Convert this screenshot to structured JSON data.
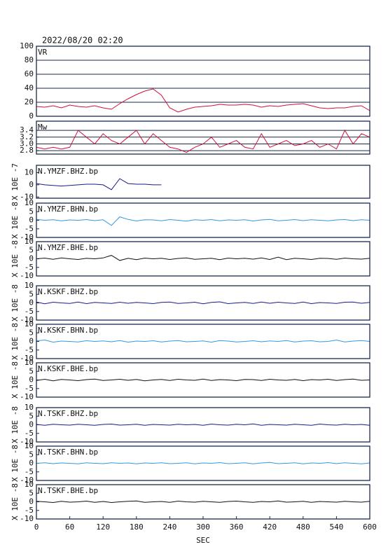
{
  "chart_data": [
    {
      "type": "line",
      "title": "2022/08/20 02:20",
      "xlim": [
        0,
        600
      ],
      "ylim": [
        0,
        100
      ],
      "yticks": [
        0,
        20,
        40,
        60,
        80,
        100
      ],
      "grid": true,
      "x": [
        0,
        15,
        30,
        45,
        60,
        75,
        90,
        105,
        120,
        135,
        150,
        165,
        180,
        195,
        210,
        225,
        240,
        255,
        270,
        285,
        300,
        315,
        330,
        345,
        360,
        375,
        390,
        405,
        420,
        435,
        450,
        465,
        480,
        495,
        510,
        525,
        540,
        555,
        570,
        585,
        600
      ],
      "series": [
        {
          "name": "VR",
          "color": "#d0103a",
          "values": [
            14,
            13,
            15,
            12,
            16,
            14,
            13,
            15,
            12,
            10,
            18,
            25,
            31,
            36,
            39,
            30,
            12,
            6,
            10,
            13,
            14,
            15,
            17,
            16,
            16,
            17,
            16,
            13,
            15,
            14,
            16,
            17,
            18,
            15,
            12,
            11,
            12,
            12,
            14,
            15,
            8
          ]
        }
      ]
    },
    {
      "type": "line",
      "xlim": [
        0,
        600
      ],
      "ylim": [
        2.7,
        3.67
      ],
      "yticks": [
        2.8,
        {
          "value": 3,
          "label": "3.0"
        },
        3.2,
        3.4
      ],
      "grid": true,
      "x": [
        0,
        15,
        30,
        45,
        60,
        75,
        90,
        105,
        120,
        135,
        150,
        165,
        180,
        195,
        210,
        225,
        240,
        255,
        270,
        285,
        300,
        315,
        330,
        345,
        360,
        375,
        390,
        405,
        420,
        435,
        450,
        465,
        480,
        495,
        510,
        525,
        540,
        555,
        570,
        585,
        600
      ],
      "series": [
        {
          "name": "Mw",
          "color": "#d0103a",
          "values": [
            2.9,
            2.85,
            2.9,
            2.85,
            2.9,
            3.4,
            3.2,
            3.0,
            3.3,
            3.1,
            3.0,
            3.2,
            3.4,
            3.0,
            3.3,
            3.1,
            2.9,
            2.85,
            2.75,
            2.9,
            3.0,
            3.2,
            2.9,
            3.0,
            3.1,
            2.9,
            2.85,
            3.3,
            2.9,
            3.0,
            3.1,
            2.95,
            3.0,
            3.1,
            2.9,
            3.0,
            2.85,
            3.4,
            3.0,
            3.3,
            3.2
          ]
        }
      ]
    },
    {
      "type": "line",
      "unit": "X 10E -7",
      "xlim": [
        0,
        600
      ],
      "ylim": [
        -11,
        16
      ],
      "yticks": [
        -10,
        0,
        10
      ],
      "grid": false,
      "x": [
        0,
        15,
        30,
        45,
        60,
        75,
        90,
        105,
        120,
        135,
        150,
        165,
        180,
        195,
        210,
        225,
        240,
        255,
        270,
        285,
        300,
        315,
        330,
        345,
        360,
        375,
        390,
        405,
        420,
        435,
        450,
        465,
        480,
        495,
        510,
        525,
        540,
        555,
        570,
        585,
        600
      ],
      "series": [
        {
          "name": "N.YMZF.BHZ.bp",
          "color": "#1a1a8a",
          "values": [
            1,
            0,
            -0.5,
            -1,
            -0.5,
            0,
            0.5,
            0.5,
            0,
            -4,
            5,
            1,
            0.5,
            0.5,
            0,
            0,
            null,
            null,
            null,
            null,
            null,
            null,
            null,
            null,
            null,
            null,
            null,
            null,
            null,
            null,
            null,
            null,
            null,
            null,
            null,
            null,
            null,
            null,
            null,
            null,
            null
          ]
        }
      ]
    },
    {
      "type": "line",
      "unit": "X 10E -8",
      "xlim": [
        0,
        600
      ],
      "ylim": [
        -10,
        10
      ],
      "yticks": [
        -10,
        -5,
        0,
        5,
        10
      ],
      "grid": false,
      "x": [
        0,
        15,
        30,
        45,
        60,
        75,
        90,
        105,
        120,
        135,
        150,
        165,
        180,
        195,
        210,
        225,
        240,
        255,
        270,
        285,
        300,
        315,
        330,
        345,
        360,
        375,
        390,
        405,
        420,
        435,
        450,
        465,
        480,
        495,
        510,
        525,
        540,
        555,
        570,
        585,
        600
      ],
      "series": [
        {
          "name": "N.YMZF.BHN.bp",
          "color": "#3399dd",
          "values": [
            0.5,
            0,
            0.3,
            -0.3,
            0.2,
            0,
            0.4,
            -0.2,
            0.3,
            -3,
            2,
            0.5,
            -0.4,
            0.3,
            0.2,
            -0.3,
            0.4,
            0,
            -0.5,
            0.3,
            0,
            0.4,
            -0.3,
            0.2,
            0,
            0.3,
            -0.4,
            0.2,
            0.5,
            -0.3,
            0,
            0.4,
            -0.2,
            0.3,
            0,
            -0.3,
            0.2,
            0.4,
            -0.2,
            0.3,
            0
          ]
        }
      ]
    },
    {
      "type": "line",
      "unit": "X 10E -8",
      "xlim": [
        0,
        600
      ],
      "ylim": [
        -10,
        10
      ],
      "yticks": [
        -10,
        -5,
        0,
        5,
        10
      ],
      "grid": false,
      "x": [
        0,
        15,
        30,
        45,
        60,
        75,
        90,
        105,
        120,
        135,
        150,
        165,
        180,
        195,
        210,
        225,
        240,
        255,
        270,
        285,
        300,
        315,
        330,
        345,
        360,
        375,
        390,
        405,
        420,
        435,
        450,
        465,
        480,
        495,
        510,
        525,
        540,
        555,
        570,
        585,
        600
      ],
      "series": [
        {
          "name": "N.YMZF.BHE.bp",
          "color": "#111111",
          "values": [
            0,
            0.4,
            -0.3,
            0.5,
            0,
            -0.4,
            0.3,
            0,
            0.5,
            2,
            -1,
            0.3,
            -0.5,
            0.4,
            0,
            0.3,
            -0.4,
            0.2,
            0.5,
            -0.3,
            0,
            0.3,
            -0.5,
            0.4,
            0,
            0.3,
            -0.2,
            0.5,
            -0.4,
            1,
            -0.5,
            0.3,
            0,
            -0.4,
            0.3,
            0.2,
            -0.3,
            0.4,
            0,
            -0.2,
            0.3
          ]
        }
      ]
    },
    {
      "type": "line",
      "unit": "X 10E -8",
      "xlim": [
        0,
        600
      ],
      "ylim": [
        -10,
        10
      ],
      "yticks": [
        -10,
        -5,
        0,
        5,
        10
      ],
      "grid": false,
      "x": [
        0,
        15,
        30,
        45,
        60,
        75,
        90,
        105,
        120,
        135,
        150,
        165,
        180,
        195,
        210,
        225,
        240,
        255,
        270,
        285,
        300,
        315,
        330,
        345,
        360,
        375,
        390,
        405,
        420,
        435,
        450,
        465,
        480,
        495,
        510,
        525,
        540,
        555,
        570,
        585,
        600
      ],
      "series": [
        {
          "name": "N.KSKF.BHZ.bp",
          "color": "#1a1a8a",
          "values": [
            0.5,
            -0.5,
            0.4,
            0,
            -0.3,
            0.5,
            -0.4,
            0.3,
            0,
            -0.3,
            0.4,
            -0.2,
            0.3,
            0,
            -0.4,
            0.3,
            0.5,
            -0.3,
            0,
            0.4,
            -0.5,
            0.3,
            0.6,
            -0.4,
            0,
            0.3,
            -0.3,
            0.5,
            -0.2,
            0.4,
            0,
            -0.3,
            0.5,
            -0.4,
            0.2,
            0,
            -0.3,
            0.4,
            0.5,
            -0.2,
            0.3
          ]
        }
      ]
    },
    {
      "type": "line",
      "unit": "X 10E -8",
      "xlim": [
        0,
        600
      ],
      "ylim": [
        -10,
        10
      ],
      "yticks": [
        -10,
        -5,
        0,
        5,
        10
      ],
      "grid": false,
      "x": [
        0,
        15,
        30,
        45,
        60,
        75,
        90,
        105,
        120,
        135,
        150,
        165,
        180,
        195,
        210,
        225,
        240,
        255,
        270,
        285,
        300,
        315,
        330,
        345,
        360,
        375,
        390,
        405,
        420,
        435,
        450,
        465,
        480,
        495,
        510,
        525,
        540,
        555,
        570,
        585,
        600
      ],
      "series": [
        {
          "name": "N.KSKF.BHN.bp",
          "color": "#3399dd",
          "values": [
            0.3,
            0.8,
            -0.4,
            0.2,
            0,
            -0.3,
            0.4,
            0,
            0.3,
            -0.2,
            0.5,
            -0.4,
            0.2,
            0,
            0.4,
            -0.3,
            0.2,
            0.5,
            -0.2,
            0,
            0.3,
            -0.4,
            0.5,
            0.2,
            -0.3,
            0,
            0.4,
            -0.2,
            0.3,
            0,
            0.5,
            -0.3,
            0.2,
            0.4,
            -0.2,
            0,
            0.8,
            -0.3,
            0.2,
            0.5,
            0
          ]
        }
      ]
    },
    {
      "type": "line",
      "unit": "X 10E -8",
      "xlim": [
        0,
        600
      ],
      "ylim": [
        -10,
        10
      ],
      "yticks": [
        -10,
        -5,
        0,
        5,
        10
      ],
      "grid": false,
      "x": [
        0,
        15,
        30,
        45,
        60,
        75,
        90,
        105,
        120,
        135,
        150,
        165,
        180,
        195,
        210,
        225,
        240,
        255,
        270,
        285,
        300,
        315,
        330,
        345,
        360,
        375,
        390,
        405,
        420,
        435,
        450,
        465,
        480,
        495,
        510,
        525,
        540,
        555,
        570,
        585,
        600
      ],
      "series": [
        {
          "name": "N.KSKF.BHE.bp",
          "color": "#111111",
          "values": [
            -0.3,
            0.4,
            -0.5,
            0.3,
            0,
            -0.4,
            0.2,
            0.5,
            -0.3,
            0,
            0.4,
            -0.2,
            0.3,
            -0.5,
            0,
            0.3,
            -0.3,
            0.4,
            0,
            -0.2,
            0.5,
            -0.3,
            0.2,
            0,
            -0.4,
            0.3,
            0.2,
            -0.3,
            0.4,
            0,
            -0.2,
            0.3,
            -0.4,
            0.2,
            0,
            0.4,
            -0.3,
            0.2,
            0.5,
            -0.2,
            0
          ]
        }
      ]
    },
    {
      "type": "line",
      "unit": "X 10E -8",
      "xlim": [
        0,
        600
      ],
      "ylim": [
        -10,
        10
      ],
      "yticks": [
        -10,
        -5,
        0,
        5,
        10
      ],
      "grid": false,
      "x": [
        0,
        15,
        30,
        45,
        60,
        75,
        90,
        105,
        120,
        135,
        150,
        165,
        180,
        195,
        210,
        225,
        240,
        255,
        270,
        285,
        300,
        315,
        330,
        345,
        360,
        375,
        390,
        405,
        420,
        435,
        450,
        465,
        480,
        495,
        510,
        525,
        540,
        555,
        570,
        585,
        600
      ],
      "series": [
        {
          "name": "N.TSKF.BHZ.bp",
          "color": "#1a1a8a",
          "values": [
            0.2,
            -0.3,
            0.3,
            0,
            -0.2,
            0.3,
            0,
            -0.3,
            0.2,
            0.4,
            -0.2,
            0,
            0.3,
            -0.3,
            0.2,
            0,
            -0.2,
            0.3,
            0,
            0.2,
            -0.3,
            0.4,
            0,
            -0.2,
            0.3,
            0,
            0.5,
            -0.3,
            0.2,
            0,
            -0.2,
            0.3,
            0,
            -0.3,
            0.4,
            0,
            -0.2,
            0.3,
            0,
            0.2,
            -0.3
          ]
        }
      ]
    },
    {
      "type": "line",
      "unit": "X 10E -8",
      "xlim": [
        0,
        600
      ],
      "ylim": [
        -10,
        10
      ],
      "yticks": [
        -10,
        -5,
        0,
        5,
        10
      ],
      "grid": false,
      "x": [
        0,
        15,
        30,
        45,
        60,
        75,
        90,
        105,
        120,
        135,
        150,
        165,
        180,
        195,
        210,
        225,
        240,
        255,
        270,
        285,
        300,
        315,
        330,
        345,
        360,
        375,
        390,
        405,
        420,
        435,
        450,
        465,
        480,
        495,
        510,
        525,
        540,
        555,
        570,
        585,
        600
      ],
      "series": [
        {
          "name": "N.TSKF.BHN.bp",
          "color": "#3399dd",
          "values": [
            0,
            0.3,
            -0.2,
            0.2,
            0,
            -0.3,
            0.3,
            0,
            -0.2,
            0.3,
            0,
            0.2,
            -0.3,
            0.2,
            0,
            0.3,
            -0.2,
            0,
            0.3,
            -0.3,
            0.2,
            0,
            0.4,
            -0.2,
            0,
            0.3,
            -0.3,
            0.2,
            0.5,
            -0.2,
            0,
            0.3,
            -0.3,
            0.2,
            0,
            0.4,
            -0.2,
            0.3,
            0,
            -0.3,
            0.2
          ]
        }
      ]
    },
    {
      "type": "line",
      "unit": "X 10E -8",
      "xlim": [
        0,
        600
      ],
      "ylim": [
        -10,
        10
      ],
      "yticks": [
        -10,
        -5,
        0,
        5,
        10
      ],
      "grid": false,
      "xlabel": "SEC",
      "xticks": [
        0,
        60,
        120,
        180,
        240,
        300,
        360,
        420,
        480,
        540,
        600
      ],
      "x": [
        0,
        15,
        30,
        45,
        60,
        75,
        90,
        105,
        120,
        135,
        150,
        165,
        180,
        195,
        210,
        225,
        240,
        255,
        270,
        285,
        300,
        315,
        330,
        345,
        360,
        375,
        390,
        405,
        420,
        435,
        450,
        465,
        480,
        495,
        510,
        525,
        540,
        555,
        570,
        585,
        600
      ],
      "series": [
        {
          "name": "N.TSKF.BHE.bp",
          "color": "#111111",
          "values": [
            0.3,
            0,
            -0.4,
            0.3,
            -0.2,
            0,
            0.4,
            -0.3,
            0.2,
            -0.4,
            0,
            0.3,
            0.5,
            -0.3,
            0,
            0.2,
            -0.3,
            0.4,
            0,
            -0.2,
            0.3,
            0,
            -0.3,
            0.2,
            0.4,
            0,
            -0.3,
            0.2,
            0,
            0.5,
            -0.2,
            0,
            0.3,
            -0.3,
            0.2,
            0,
            -0.2,
            0.3,
            0,
            -0.2,
            0.3
          ]
        }
      ]
    }
  ]
}
